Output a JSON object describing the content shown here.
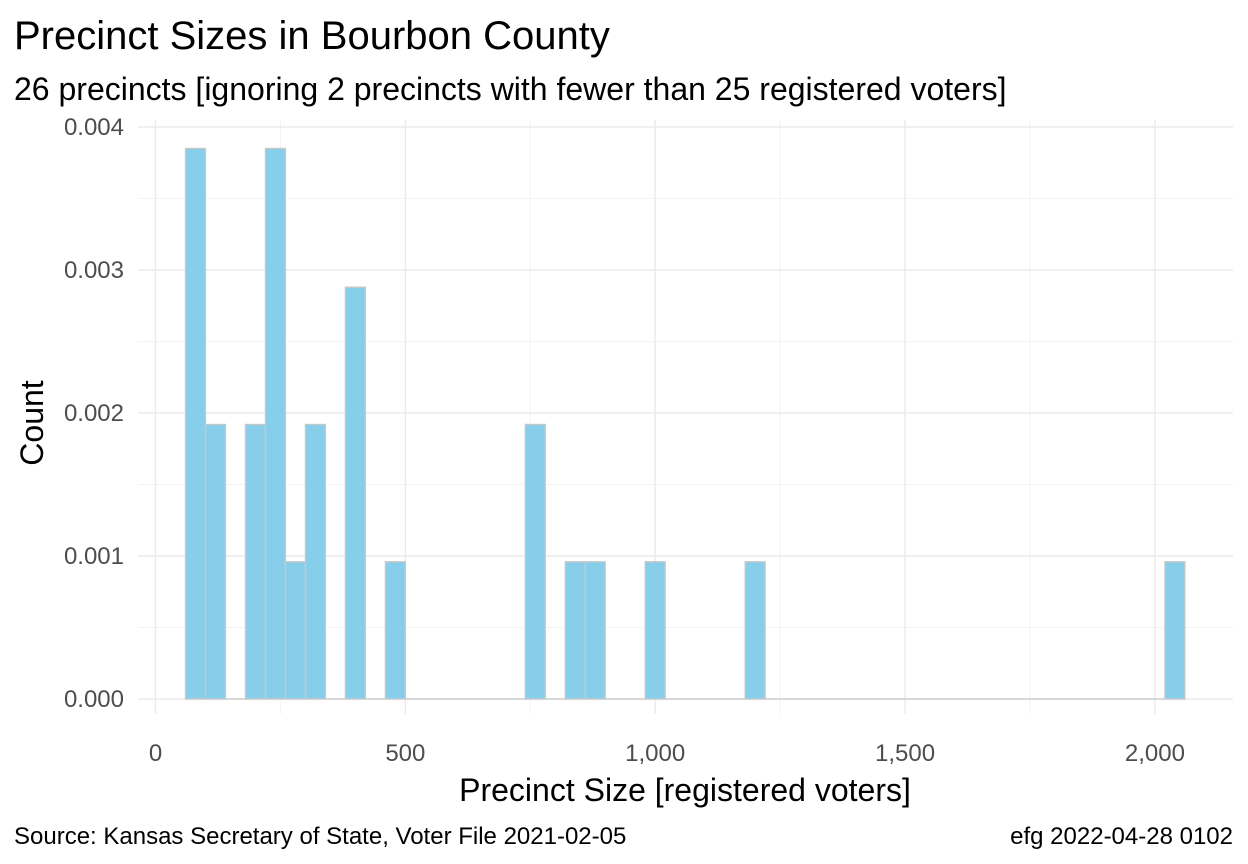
{
  "chart_data": {
    "type": "bar",
    "title": "Precinct Sizes in Bourbon County",
    "subtitle": "26 precincts [ignoring 2 precincts with fewer than 25 registered voters]",
    "xlabel": "Precinct Size [registered voters]",
    "ylabel": "Count",
    "caption_left": "Source:  Kansas Secretary of State, Voter File  2021-02-05",
    "caption_right": "efg 2022-04-28 0102",
    "xlim": [
      -60,
      2150
    ],
    "ylim": [
      0,
      0.004
    ],
    "x_ticks": [
      {
        "value": 0,
        "label": "0"
      },
      {
        "value": 500,
        "label": "500"
      },
      {
        "value": 1000,
        "label": "1,000"
      },
      {
        "value": 1500,
        "label": "1,500"
      },
      {
        "value": 2000,
        "label": "2,000"
      }
    ],
    "y_ticks": [
      {
        "value": 0,
        "label": "0.000"
      },
      {
        "value": 0.001,
        "label": "0.001"
      },
      {
        "value": 0.002,
        "label": "0.002"
      },
      {
        "value": 0.003,
        "label": "0.003"
      },
      {
        "value": 0.004,
        "label": "0.004"
      }
    ],
    "bin_width": 40,
    "bins": [
      {
        "x0": 60,
        "x1": 100,
        "value": 0.00385
      },
      {
        "x0": 100,
        "x1": 140,
        "value": 0.00192
      },
      {
        "x0": 180,
        "x1": 220,
        "value": 0.00192
      },
      {
        "x0": 220,
        "x1": 260,
        "value": 0.00385
      },
      {
        "x0": 260,
        "x1": 300,
        "value": 0.00096
      },
      {
        "x0": 300,
        "x1": 340,
        "value": 0.00192
      },
      {
        "x0": 380,
        "x1": 420,
        "value": 0.00288
      },
      {
        "x0": 460,
        "x1": 500,
        "value": 0.00096
      },
      {
        "x0": 740,
        "x1": 780,
        "value": 0.00192
      },
      {
        "x0": 820,
        "x1": 860,
        "value": 0.00096
      },
      {
        "x0": 860,
        "x1": 900,
        "value": 0.00096
      },
      {
        "x0": 980,
        "x1": 1020,
        "value": 0.00096
      },
      {
        "x0": 1180,
        "x1": 1220,
        "value": 0.00096
      },
      {
        "x0": 2020,
        "x1": 2060,
        "value": 0.00096
      }
    ],
    "grid": true,
    "legend": "none",
    "colors": {
      "bar_fill": "#87ceeb",
      "bar_outline": "#c8c8c8"
    }
  }
}
